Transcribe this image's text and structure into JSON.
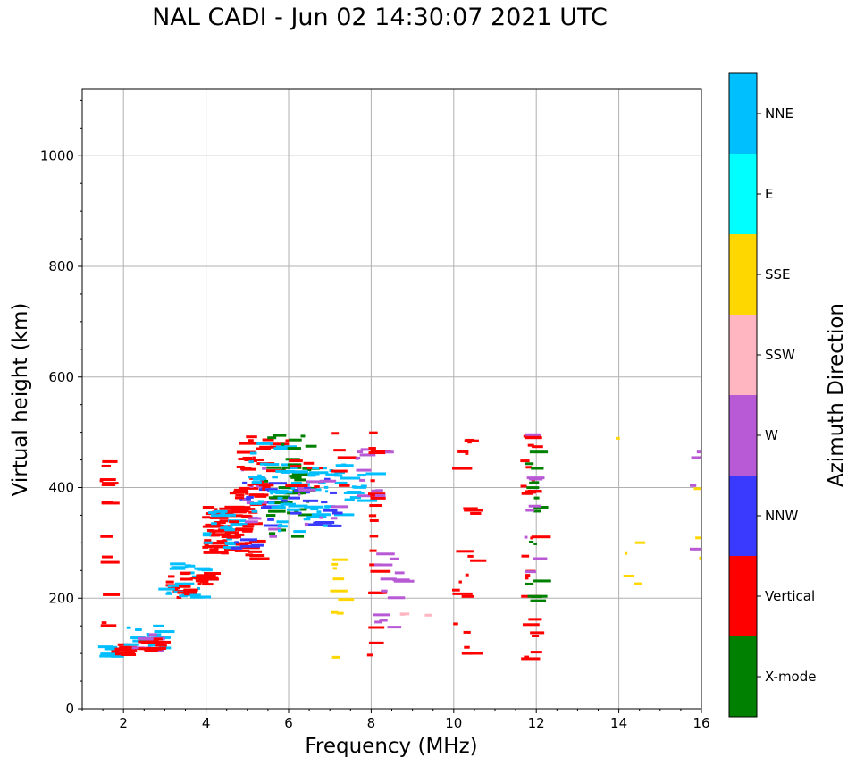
{
  "chart_data": {
    "type": "scatter",
    "title": "NAL CADI - Jun 02 14:30:07 2021 UTC",
    "xlabel": "Frequency (MHz)",
    "ylabel": "Virtual height (km)",
    "xlim": [
      1,
      16
    ],
    "ylim": [
      0,
      1120
    ],
    "xticks": [
      2,
      4,
      6,
      8,
      10,
      12,
      14,
      16
    ],
    "yticks": [
      0,
      200,
      400,
      600,
      800,
      1000
    ],
    "grid": true,
    "colorbar": {
      "label": "Azimuth Direction",
      "categories": [
        "X-mode",
        "Vertical",
        "NNW",
        "W",
        "SSW",
        "SSE",
        "E",
        "NNE"
      ],
      "colors": [
        "#008000",
        "#ff0000",
        "#3a3aff",
        "#b85ad6",
        "#ffb6c1",
        "#ffd700",
        "#00ffff",
        "#00bfff"
      ]
    },
    "clusters": [
      {
        "direction": "NNE",
        "f": [
          1.3,
          1.8
        ],
        "h": [
          90,
          115
        ],
        "n": 10
      },
      {
        "direction": "Vertical",
        "f": [
          1.7,
          2.1
        ],
        "h": [
          95,
          125
        ],
        "n": 14
      },
      {
        "direction": "NNE",
        "f": [
          2.0,
          2.9
        ],
        "h": [
          100,
          150
        ],
        "n": 16
      },
      {
        "direction": "W",
        "f": [
          2.2,
          2.9
        ],
        "h": [
          100,
          140
        ],
        "n": 8
      },
      {
        "direction": "Vertical",
        "f": [
          2.3,
          2.9
        ],
        "h": [
          105,
          135
        ],
        "n": 10
      },
      {
        "direction": "Vertical",
        "f": [
          2.9,
          3.4
        ],
        "h": [
          200,
          240
        ],
        "n": 12
      },
      {
        "direction": "NNE",
        "f": [
          2.8,
          3.9
        ],
        "h": [
          200,
          265
        ],
        "n": 22
      },
      {
        "direction": "Vertical",
        "f": [
          3.3,
          3.95
        ],
        "h": [
          205,
          255
        ],
        "n": 18
      },
      {
        "direction": "Vertical",
        "f": [
          3.9,
          4.5
        ],
        "h": [
          280,
          368
        ],
        "n": 55
      },
      {
        "direction": "NNE",
        "f": [
          3.9,
          4.6
        ],
        "h": [
          290,
          365
        ],
        "n": 20
      },
      {
        "direction": "Vertical",
        "f": [
          4.5,
          5.1
        ],
        "h": [
          270,
          400
        ],
        "n": 35
      },
      {
        "direction": "NNW",
        "f": [
          4.6,
          5.6
        ],
        "h": [
          290,
          430
        ],
        "n": 18
      },
      {
        "direction": "W",
        "f": [
          4.8,
          5.6
        ],
        "h": [
          300,
          450
        ],
        "n": 14
      },
      {
        "direction": "Vertical",
        "f": [
          4.7,
          5.6
        ],
        "h": [
          380,
          505
        ],
        "n": 30
      },
      {
        "direction": "NNE",
        "f": [
          5.0,
          5.9
        ],
        "h": [
          330,
          480
        ],
        "n": 25
      },
      {
        "direction": "X-mode",
        "f": [
          5.4,
          6.5
        ],
        "h": [
          310,
          505
        ],
        "n": 45
      },
      {
        "direction": "NNE",
        "f": [
          5.6,
          7.2
        ],
        "h": [
          315,
          440
        ],
        "n": 40
      },
      {
        "direction": "NNW",
        "f": [
          5.8,
          7.1
        ],
        "h": [
          330,
          420
        ],
        "n": 16
      },
      {
        "direction": "W",
        "f": [
          6.2,
          7.2
        ],
        "h": [
          330,
          420
        ],
        "n": 10
      },
      {
        "direction": "Vertical",
        "f": [
          5.7,
          7.3
        ],
        "h": [
          400,
          500
        ],
        "n": 14
      },
      {
        "direction": "NNE",
        "f": [
          7.0,
          7.9
        ],
        "h": [
          370,
          445
        ],
        "n": 14
      },
      {
        "direction": "W",
        "f": [
          7.6,
          7.9
        ],
        "h": [
          370,
          470
        ],
        "n": 8
      },
      {
        "direction": "Vertical",
        "f": [
          1.4,
          1.5
        ],
        "h": [
          150,
          485
        ],
        "n": 14
      },
      {
        "direction": "SSE",
        "f": [
          7.0,
          7.2
        ],
        "h": [
          90,
          280
        ],
        "n": 9
      },
      {
        "direction": "Vertical",
        "f": [
          7.9,
          8.0
        ],
        "h": [
          90,
          505
        ],
        "n": 20
      },
      {
        "direction": "W",
        "f": [
          8.0,
          8.6
        ],
        "h": [
          120,
          480
        ],
        "n": 18
      },
      {
        "direction": "SSW",
        "f": [
          8.6,
          9.4
        ],
        "h": [
          168,
          172
        ],
        "n": 3
      },
      {
        "direction": "Vertical",
        "f": [
          9.9,
          10.4
        ],
        "h": [
          95,
          505
        ],
        "n": 22
      },
      {
        "direction": "Vertical",
        "f": [
          11.6,
          11.9
        ],
        "h": [
          90,
          505
        ],
        "n": 26
      },
      {
        "direction": "X-mode",
        "f": [
          11.7,
          11.95
        ],
        "h": [
          190,
          500
        ],
        "n": 16
      },
      {
        "direction": "W",
        "f": [
          11.7,
          11.95
        ],
        "h": [
          200,
          500
        ],
        "n": 8
      },
      {
        "direction": "SSE",
        "f": [
          13.8,
          14.2
        ],
        "h": [
          488,
          494
        ],
        "n": 1
      },
      {
        "direction": "SSE",
        "f": [
          14.1,
          14.6
        ],
        "h": [
          180,
          385
        ],
        "n": 4
      },
      {
        "direction": "W",
        "f": [
          15.6,
          16.0
        ],
        "h": [
          210,
          470
        ],
        "n": 5
      },
      {
        "direction": "SSE",
        "f": [
          15.6,
          16.0
        ],
        "h": [
          270,
          420
        ],
        "n": 3
      }
    ]
  }
}
